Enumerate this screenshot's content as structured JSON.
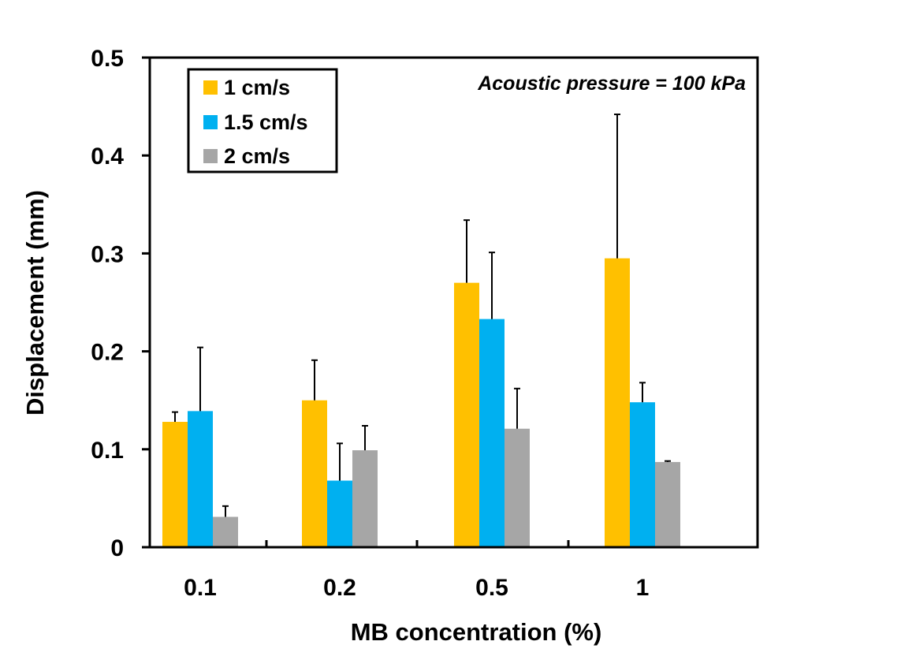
{
  "chart_data": {
    "type": "bar",
    "title": "",
    "xlabel": "MB concentration (%)",
    "ylabel": "Displacement (mm)",
    "ylim": [
      0,
      0.5
    ],
    "yticks": [
      0,
      0.1,
      0.2,
      0.3,
      0.4,
      0.5
    ],
    "ytick_labels": [
      "0",
      "0.1",
      "0.2",
      "0.3",
      "0.4",
      "0.5"
    ],
    "categories": [
      "0.1",
      "0.2",
      "0.5",
      "1"
    ],
    "series": [
      {
        "name": "1 cm/s",
        "color": "#FFC000",
        "values": [
          0.128,
          0.15,
          0.27,
          0.295
        ],
        "errors": [
          0.01,
          0.041,
          0.064,
          0.147
        ]
      },
      {
        "name": "1.5 cm/s",
        "color": "#00B0F0",
        "values": [
          0.139,
          0.068,
          0.233,
          0.148
        ],
        "errors": [
          0.065,
          0.038,
          0.068,
          0.02
        ]
      },
      {
        "name": "2 cm/s",
        "color": "#A6A6A6",
        "values": [
          0.031,
          0.099,
          0.121,
          0.087
        ],
        "errors": [
          0.011,
          0.025,
          0.041,
          0.001
        ]
      }
    ],
    "annotation": "Acoustic pressure = 100 kPa",
    "legend_position": "top-left",
    "grid": false
  }
}
